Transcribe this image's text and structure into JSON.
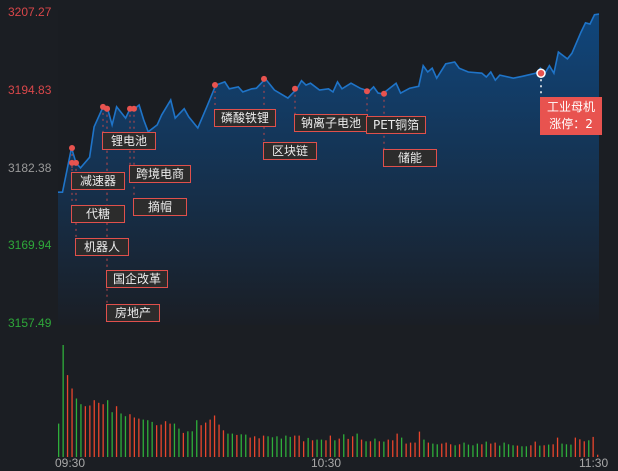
{
  "chart_data": {
    "type": "line",
    "title": "",
    "y_ticks": [
      "3207.27",
      "3194.83",
      "3182.38",
      "3169.94",
      "3157.49"
    ],
    "ylim": [
      3157.49,
      3207.27
    ],
    "reference_price": 3182.38,
    "x_ticks": [
      "09:30",
      "10:30",
      "11:30"
    ],
    "xlim": [
      "09:30",
      "11:30"
    ],
    "colors": {
      "line": "#1f74c8",
      "up": "#e8452c",
      "down": "#2fae3a",
      "tag_border": "#e0504c",
      "tag_hot": "#e8534f",
      "axis_up": "#d9474a",
      "axis_flat": "#9a9a9a",
      "axis_down": "#2ea83a"
    },
    "price_series": [
      [
        "09:30",
        3178.5
      ],
      [
        "09:31",
        3178.5
      ],
      [
        "09:33",
        3185.6
      ],
      [
        "09:34",
        3183.2
      ],
      [
        "09:35",
        3182.4
      ],
      [
        "09:37",
        3184.1
      ],
      [
        "09:38",
        3189.0
      ],
      [
        "09:40",
        3192.2
      ],
      [
        "09:41",
        3191.9
      ],
      [
        "09:42",
        3189.3
      ],
      [
        "09:43",
        3192.2
      ],
      [
        "09:45",
        3190.4
      ],
      [
        "09:46",
        3191.9
      ],
      [
        "09:47",
        3191.9
      ],
      [
        "09:48",
        3192.5
      ],
      [
        "09:49",
        3190.1
      ],
      [
        "09:50",
        3188.2
      ],
      [
        "09:52",
        3189.3
      ],
      [
        "09:53",
        3190.9
      ],
      [
        "09:55",
        3193.3
      ],
      [
        "09:56",
        3190.4
      ],
      [
        "09:58",
        3191.9
      ],
      [
        "09:59",
        3190.6
      ],
      [
        "10:01",
        3188.8
      ],
      [
        "10:03",
        3192.2
      ],
      [
        "10:05",
        3195.7
      ],
      [
        "10:07",
        3196.2
      ],
      [
        "10:08",
        3195.1
      ],
      [
        "10:10",
        3195.4
      ],
      [
        "10:11",
        3194.6
      ],
      [
        "10:13",
        3195.1
      ],
      [
        "10:14",
        3195.2
      ],
      [
        "10:16",
        3196.7
      ],
      [
        "10:18",
        3194.9
      ],
      [
        "10:21",
        3193.6
      ],
      [
        "10:23",
        3195.1
      ],
      [
        "10:24",
        3196.4
      ],
      [
        "10:25",
        3195.7
      ],
      [
        "10:26",
        3196.0
      ],
      [
        "10:28",
        3194.9
      ],
      [
        "10:30",
        3195.1
      ],
      [
        "10:31",
        3194.6
      ],
      [
        "10:32",
        3196.2
      ],
      [
        "10:33",
        3195.1
      ],
      [
        "10:35",
        3196.0
      ],
      [
        "10:37",
        3195.2
      ],
      [
        "10:39",
        3194.7
      ],
      [
        "10:40",
        3195.4
      ],
      [
        "10:41",
        3194.4
      ],
      [
        "10:42",
        3194.3
      ],
      [
        "10:45",
        3196.0
      ],
      [
        "10:46",
        3194.4
      ],
      [
        "10:48",
        3195.2
      ],
      [
        "10:50",
        3195.5
      ],
      [
        "10:51",
        3198.8
      ],
      [
        "10:52",
        3197.8
      ],
      [
        "10:53",
        3198.4
      ],
      [
        "10:54",
        3196.8
      ],
      [
        "10:56",
        3199.1
      ],
      [
        "10:58",
        3199.4
      ],
      [
        "10:59",
        3198.4
      ],
      [
        "11:01",
        3197.8
      ],
      [
        "11:04",
        3197.6
      ],
      [
        "11:05",
        3197.0
      ],
      [
        "11:06",
        3197.8
      ],
      [
        "11:07",
        3196.5
      ],
      [
        "11:08",
        3197.3
      ],
      [
        "11:11",
        3196.8
      ],
      [
        "11:13",
        3197.1
      ],
      [
        "11:16",
        3197.6
      ],
      [
        "11:17",
        3198.4
      ],
      [
        "11:18",
        3197.6
      ],
      [
        "11:19",
        3198.8
      ],
      [
        "11:20",
        3197.6
      ],
      [
        "11:21",
        3201.0
      ],
      [
        "11:23",
        3199.9
      ],
      [
        "11:24",
        3200.8
      ],
      [
        "11:26",
        3204.2
      ],
      [
        "11:27",
        3205.7
      ],
      [
        "11:28",
        3205.5
      ],
      [
        "11:29",
        3207.0
      ],
      [
        "11:30",
        3207.1
      ]
    ],
    "volume": [
      [
        "down",
        100
      ],
      [
        "down",
        335
      ],
      [
        "up",
        245
      ],
      [
        "up",
        205
      ],
      [
        "down",
        175
      ],
      [
        "down",
        158
      ],
      [
        "up",
        152
      ],
      [
        "up",
        154
      ],
      [
        "up",
        170
      ],
      [
        "up",
        162
      ],
      [
        "up",
        158
      ],
      [
        "down",
        170
      ],
      [
        "down",
        134
      ],
      [
        "up",
        152
      ],
      [
        "down",
        130
      ],
      [
        "down",
        122
      ],
      [
        "up",
        128
      ],
      [
        "up",
        118
      ],
      [
        "up",
        115
      ],
      [
        "down",
        112
      ],
      [
        "down",
        110
      ],
      [
        "down",
        105
      ],
      [
        "up",
        95
      ],
      [
        "up",
        97
      ],
      [
        "up",
        107
      ],
      [
        "up",
        100
      ],
      [
        "down",
        100
      ],
      [
        "down",
        85
      ],
      [
        "up",
        72
      ],
      [
        "down",
        77
      ],
      [
        "down",
        77
      ],
      [
        "down",
        110
      ],
      [
        "up",
        95
      ],
      [
        "up",
        103
      ],
      [
        "up",
        112
      ],
      [
        "up",
        124
      ],
      [
        "up",
        97
      ],
      [
        "up",
        80
      ],
      [
        "down",
        70
      ],
      [
        "down",
        70
      ],
      [
        "up",
        66
      ],
      [
        "down",
        68
      ],
      [
        "down",
        67
      ],
      [
        "up",
        58
      ],
      [
        "up",
        62
      ],
      [
        "up",
        56
      ],
      [
        "up",
        64
      ],
      [
        "down",
        62
      ],
      [
        "down",
        59
      ],
      [
        "down",
        62
      ],
      [
        "down",
        55
      ],
      [
        "down",
        64
      ],
      [
        "down",
        60
      ],
      [
        "up",
        64
      ],
      [
        "up",
        64
      ],
      [
        "up",
        47
      ],
      [
        "down",
        57
      ],
      [
        "up",
        50
      ],
      [
        "down",
        52
      ],
      [
        "down",
        52
      ],
      [
        "up",
        50
      ],
      [
        "up",
        64
      ],
      [
        "down",
        50
      ],
      [
        "up",
        55
      ],
      [
        "down",
        68
      ],
      [
        "up",
        54
      ],
      [
        "up",
        62
      ],
      [
        "down",
        70
      ],
      [
        "up",
        52
      ],
      [
        "down",
        47
      ],
      [
        "up",
        47
      ],
      [
        "down",
        55
      ],
      [
        "up",
        47
      ],
      [
        "down",
        46
      ],
      [
        "up",
        52
      ],
      [
        "up",
        50
      ],
      [
        "up",
        70
      ],
      [
        "down",
        58
      ],
      [
        "up",
        40
      ],
      [
        "up",
        43
      ],
      [
        "up",
        43
      ],
      [
        "up",
        76
      ],
      [
        "down",
        52
      ],
      [
        "up",
        43
      ],
      [
        "down",
        40
      ],
      [
        "down",
        38
      ],
      [
        "up",
        40
      ],
      [
        "up",
        43
      ],
      [
        "up",
        38
      ],
      [
        "down",
        35
      ],
      [
        "up",
        38
      ],
      [
        "down",
        43
      ],
      [
        "down",
        37
      ],
      [
        "down",
        35
      ],
      [
        "down",
        40
      ],
      [
        "up",
        38
      ],
      [
        "down",
        46
      ],
      [
        "up",
        40
      ],
      [
        "up",
        43
      ],
      [
        "down",
        34
      ],
      [
        "down",
        43
      ],
      [
        "down",
        38
      ],
      [
        "down",
        35
      ],
      [
        "up",
        34
      ],
      [
        "down",
        32
      ],
      [
        "down",
        32
      ],
      [
        "up",
        35
      ],
      [
        "up",
        46
      ],
      [
        "down",
        34
      ],
      [
        "up",
        35
      ],
      [
        "down",
        37
      ],
      [
        "up",
        38
      ],
      [
        "up",
        58
      ],
      [
        "down",
        40
      ],
      [
        "down",
        38
      ],
      [
        "down",
        37
      ],
      [
        "up",
        58
      ],
      [
        "up",
        53
      ],
      [
        "up",
        47
      ],
      [
        "down",
        50
      ],
      [
        "up",
        60
      ],
      [
        "up",
        7
      ]
    ],
    "annotations": [
      {
        "label": "减速器",
        "time": "09:33",
        "price": 3185.6
      },
      {
        "label": "代糖",
        "time": "09:34",
        "price": 3183.2
      },
      {
        "label": "机器人",
        "time": "09:34",
        "price": 3183.2
      },
      {
        "label": "锂电池",
        "time": "09:40",
        "price": 3192.2
      },
      {
        "label": "国企改革",
        "time": "09:41",
        "price": 3191.9
      },
      {
        "label": "房地产",
        "time": "09:41",
        "price": 3191.9
      },
      {
        "label": "跨境电商",
        "time": "09:46",
        "price": 3191.9
      },
      {
        "label": "摘帽",
        "time": "09:47",
        "price": 3191.9
      },
      {
        "label": "磷酸铁锂",
        "time": "10:05",
        "price": 3195.7
      },
      {
        "label": "区块链",
        "time": "10:16",
        "price": 3196.7
      },
      {
        "label": "钠离子电池",
        "time": "10:23",
        "price": 3195.1
      },
      {
        "label": "PET铜箔",
        "time": "10:39",
        "price": 3194.7
      },
      {
        "label": "储能",
        "time": "10:42",
        "price": 3194.3
      },
      {
        "label": "工业母机",
        "sub": "涨停：2",
        "time": "11:18",
        "price": 3197.6,
        "highlight": true
      }
    ]
  }
}
